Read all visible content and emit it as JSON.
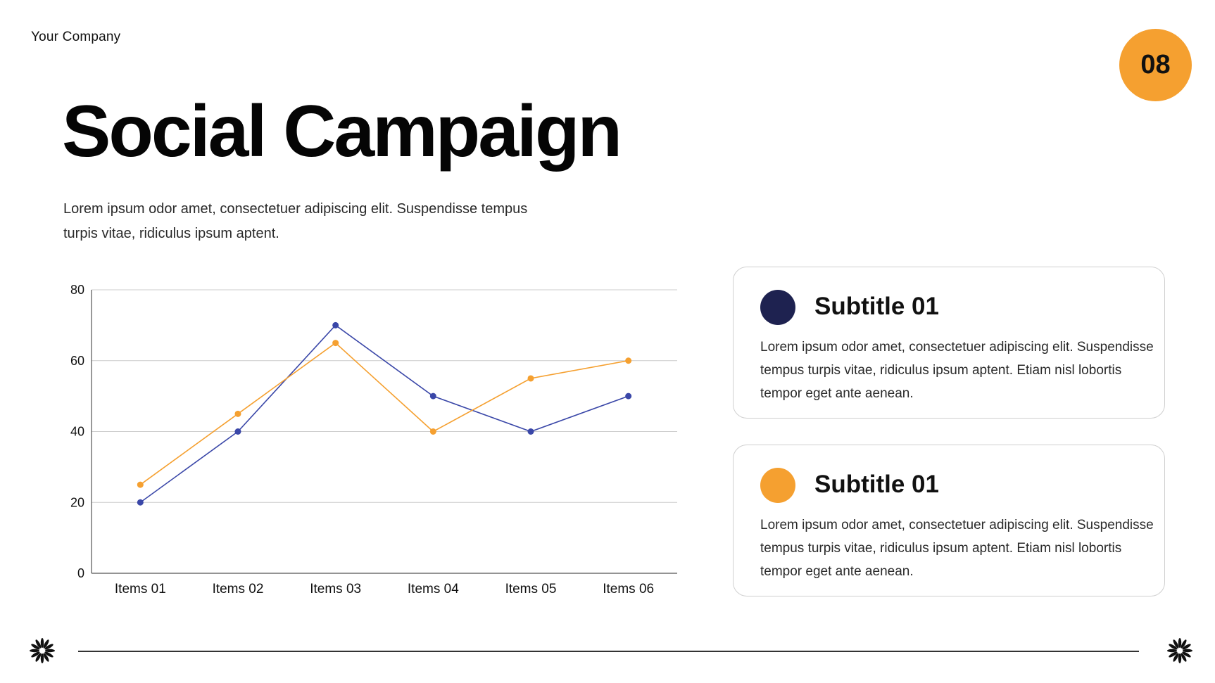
{
  "header": {
    "company": "Your Company",
    "page_number": "08"
  },
  "main": {
    "title": "Social Campaign",
    "intro": "Lorem ipsum odor amet, consectetuer adipiscing elit. Suspendisse tempus turpis vitae, ridiculus ipsum aptent."
  },
  "cards": [
    {
      "title": "Subtitle 01",
      "text": "Lorem ipsum odor amet, consectetuer adipiscing elit. Suspendisse tempus turpis vitae, ridiculus ipsum aptent. Etiam nisl lobortis tempor eget ante aenean.",
      "color": "#1E2250"
    },
    {
      "title": "Subtitle 01",
      "text": "Lorem ipsum odor amet, consectetuer adipiscing elit. Suspendisse tempus turpis vitae, ridiculus ipsum aptent. Etiam nisl lobortis tempor eget ante aenean.",
      "color": "#F5A030"
    }
  ],
  "footer": {
    "left_icon": "flower-icon",
    "right_icon": "flower-icon"
  },
  "chart_data": {
    "type": "line",
    "categories": [
      "Items 01",
      "Items 02",
      "Items 03",
      "Items 04",
      "Items 05",
      "Items 06"
    ],
    "series": [
      {
        "color": "#3A47A8",
        "values": [
          20,
          40,
          70,
          50,
          40,
          50
        ]
      },
      {
        "color": "#F5A030",
        "values": [
          25,
          45,
          65,
          40,
          55,
          60
        ]
      }
    ],
    "yticks": [
      0,
      20,
      40,
      60,
      80
    ],
    "ylim": [
      0,
      80
    ],
    "grid": true,
    "legend": "none"
  }
}
